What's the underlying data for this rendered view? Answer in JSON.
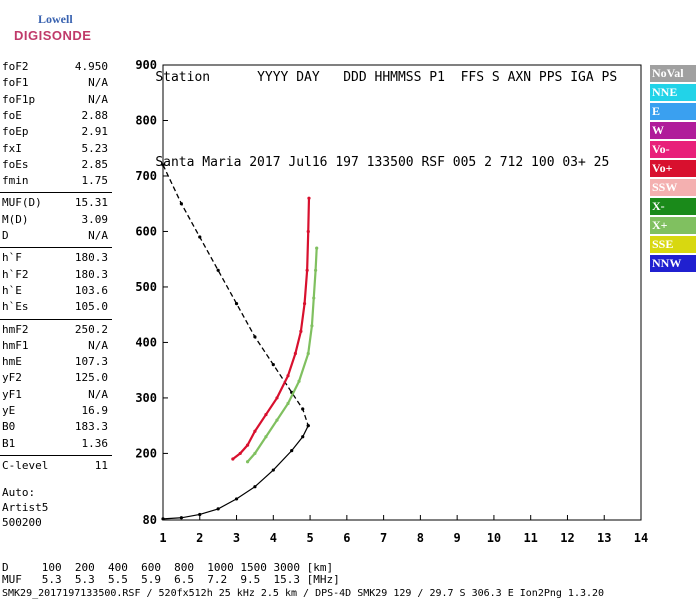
{
  "logo": {
    "line1": "Lowell",
    "line2": "DIGISONDE"
  },
  "header": {
    "labels": [
      "Station",
      "YYYY",
      "DAY",
      "DDD",
      "HHMMSS",
      "P1",
      "FFS",
      "S",
      "AXN",
      "PPS",
      "IGA",
      "PS"
    ],
    "values": [
      "Santa Maria",
      "2017",
      "Jul16",
      "197",
      "133500",
      "RSF",
      "005",
      "2",
      "712",
      "100",
      "03+",
      "25"
    ]
  },
  "params": [
    {
      "key": "foF2",
      "value": "4.950"
    },
    {
      "key": "foF1",
      "value": "N/A"
    },
    {
      "key": "foF1p",
      "value": "N/A"
    },
    {
      "key": "foE",
      "value": "2.88"
    },
    {
      "key": "foEp",
      "value": "2.91"
    },
    {
      "key": "fxI",
      "value": "5.23"
    },
    {
      "key": "foEs",
      "value": "2.85"
    },
    {
      "key": "fmin",
      "value": "1.75"
    },
    {
      "key": "MUF(D)",
      "value": "15.31"
    },
    {
      "key": "M(D)",
      "value": "3.09"
    },
    {
      "key": "D",
      "value": "N/A"
    },
    {
      "key": "h`F",
      "value": "180.3"
    },
    {
      "key": "h`F2",
      "value": "180.3"
    },
    {
      "key": "h`E",
      "value": "103.6"
    },
    {
      "key": "h`Es",
      "value": "105.0"
    },
    {
      "key": "hmF2",
      "value": "250.2"
    },
    {
      "key": "hmF1",
      "value": "N/A"
    },
    {
      "key": "hmE",
      "value": "107.3"
    },
    {
      "key": "yF2",
      "value": "125.0"
    },
    {
      "key": "yF1",
      "value": "N/A"
    },
    {
      "key": "yE",
      "value": "16.9"
    },
    {
      "key": "B0",
      "value": "183.3"
    },
    {
      "key": "B1",
      "value": "1.36"
    },
    {
      "key": "C-level",
      "value": "11"
    }
  ],
  "auto": {
    "line1": "Auto:",
    "line2": "Artist5",
    "line3": "500200"
  },
  "legend": [
    {
      "label": "NoVal",
      "color": "#a0a0a0"
    },
    {
      "label": "NNE",
      "color": "#22d3e8"
    },
    {
      "label": "E",
      "color": "#3aa0f0"
    },
    {
      "label": "W",
      "color": "#b01c9a"
    },
    {
      "label": "Vo-",
      "color": "#e8207a"
    },
    {
      "label": "Vo+",
      "color": "#d8102e"
    },
    {
      "label": "SSW",
      "color": "#f4b0b0"
    },
    {
      "label": "X-",
      "color": "#1a8a1a"
    },
    {
      "label": "X+",
      "color": "#80c060"
    },
    {
      "label": "SSE",
      "color": "#d8d810"
    },
    {
      "label": "NNW",
      "color": "#2020d0"
    }
  ],
  "footer": {
    "line1": "D     100  200  400  600  800  1000 1500 3000 [km]",
    "line2": "MUF   5.3  5.3  5.5  5.9  6.5  7.2  9.5  15.3 [MHz]",
    "line3": "SMK29_2017197133500.RSF / 520fx512h 25 kHz 2.5 km / DPS-4D SMK29 129 / 29.7 S 306.3 E Ion2Png 1.3.20"
  },
  "chart_data": {
    "type": "scatter",
    "xlabel": "",
    "ylabel": "",
    "xlim": [
      1,
      14
    ],
    "ylim": [
      80,
      900
    ],
    "xticks": [
      1,
      2,
      3,
      4,
      5,
      6,
      7,
      8,
      9,
      10,
      11,
      12,
      13,
      14
    ],
    "yticks": [
      80,
      200,
      300,
      400,
      500,
      600,
      700,
      800,
      900
    ],
    "trace_O": {
      "name": "Vo+",
      "color": "#d8102e",
      "x": [
        2.9,
        3.1,
        3.3,
        3.5,
        3.8,
        4.1,
        4.4,
        4.6,
        4.75,
        4.85,
        4.92,
        4.95,
        4.97
      ],
      "y": [
        190,
        200,
        215,
        240,
        270,
        300,
        340,
        380,
        420,
        470,
        530,
        600,
        660
      ]
    },
    "trace_X": {
      "name": "X+",
      "color": "#80c060",
      "x": [
        3.3,
        3.5,
        3.8,
        4.1,
        4.4,
        4.7,
        4.95,
        5.05,
        5.1,
        5.15,
        5.18
      ],
      "y": [
        185,
        200,
        230,
        260,
        290,
        330,
        380,
        430,
        480,
        530,
        570
      ]
    },
    "profile": {
      "name": "",
      "x": [
        1.0,
        1.5,
        2.0,
        2.5,
        3.0,
        3.5,
        4.0,
        4.5,
        4.8,
        4.95
      ],
      "y": [
        720,
        650,
        590,
        530,
        470,
        410,
        360,
        310,
        280,
        250
      ]
    },
    "muf_curve": {
      "name": "",
      "x": [
        1.0,
        1.5,
        2.0,
        2.5,
        3.0,
        3.5,
        4.0,
        4.5,
        4.8,
        4.95
      ],
      "y": [
        82,
        84,
        90,
        100,
        118,
        140,
        170,
        205,
        230,
        250
      ]
    }
  }
}
